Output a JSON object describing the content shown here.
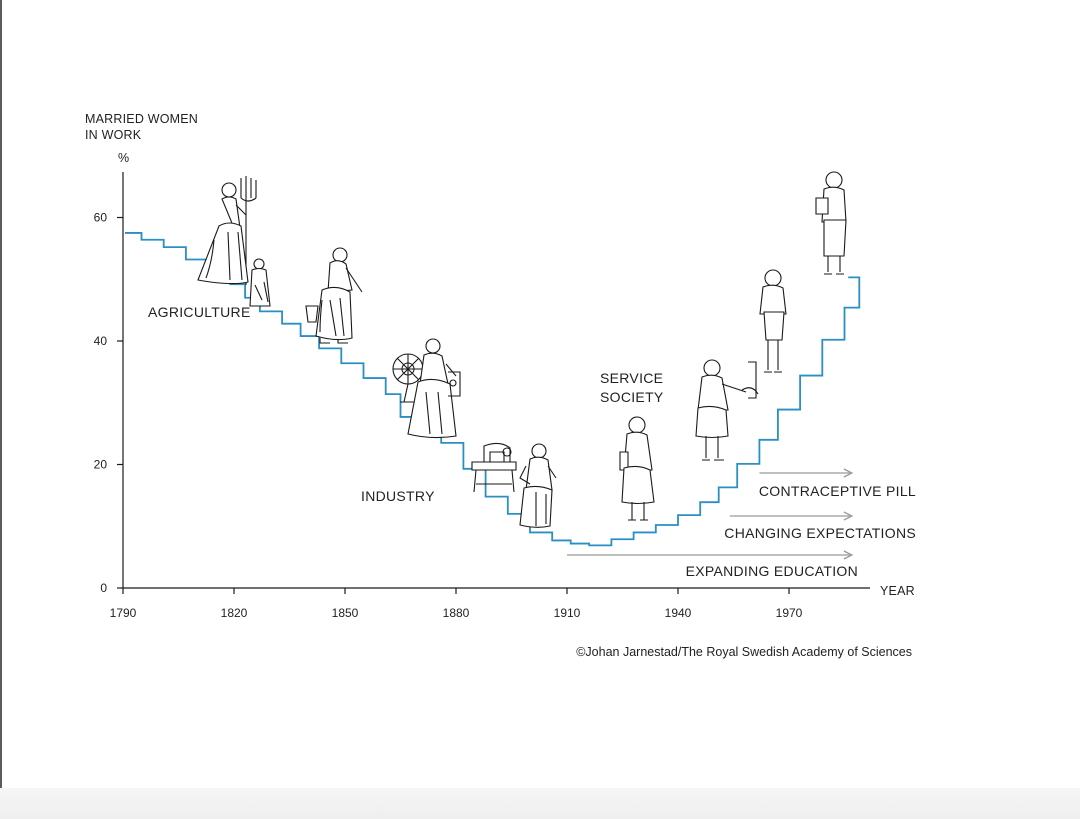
{
  "chart_data": {
    "type": "line",
    "step": true,
    "ylabel_lines": [
      "MARRIED WOMEN",
      "IN WORK"
    ],
    "yunit": "%",
    "xlabel": "YEAR",
    "xlim": [
      1790,
      1990
    ],
    "ylim": [
      0,
      68
    ],
    "xticks": [
      1790,
      1820,
      1850,
      1880,
      1910,
      1940,
      1970
    ],
    "yticks": [
      0,
      20,
      40,
      60
    ],
    "line_color": "#2a8fc4",
    "series": [
      {
        "x": [
          1790,
          1795,
          1801,
          1807,
          1813,
          1819,
          1823,
          1827,
          1833,
          1838,
          1843,
          1849,
          1855,
          1861,
          1865,
          1870,
          1876,
          1882,
          1888,
          1894,
          1900,
          1906,
          1911,
          1916,
          1922,
          1928,
          1934,
          1940,
          1946,
          1951,
          1956,
          1962,
          1967,
          1973,
          1979,
          1985,
          1989
        ],
        "y": [
          57.5,
          56.4,
          55.2,
          53.2,
          51.2,
          49.2,
          47.0,
          44.8,
          42.8,
          40.8,
          38.8,
          36.4,
          34.0,
          31.4,
          27.7,
          25.0,
          23.5,
          19.3,
          14.8,
          12.0,
          9.0,
          7.7,
          7.2,
          6.9,
          7.9,
          9.0,
          10.2,
          11.8,
          13.9,
          16.3,
          20.1,
          24.0,
          28.9,
          34.4,
          40.2,
          45.4,
          50.3
        ]
      }
    ],
    "annotations": [
      {
        "label": "AGRICULTURE"
      },
      {
        "label": "INDUSTRY"
      },
      {
        "label_lines": [
          "SERVICE",
          "SOCIETY"
        ]
      },
      {
        "label": "CONTRACEPTIVE PILL",
        "start_year": 1962,
        "end_year": 1987
      },
      {
        "label": "CHANGING EXPECTATIONS",
        "start_year": 1954,
        "end_year": 1987
      },
      {
        "label": "EXPANDING EDUCATION",
        "start_year": 1910,
        "end_year": 1987
      }
    ],
    "figure_icons": [
      "woman-with-pitchfork-icon",
      "child-icon",
      "woman-with-bucket-icon",
      "woman-at-spinning-wheel-icon",
      "sewing-machine-icon",
      "woman-factory-worker-icon",
      "woman-with-books-icon",
      "woman-at-blackboard-icon",
      "woman-in-suit-icon",
      "woman-professional-icon"
    ],
    "credit": "©Johan Jarnestad/The Royal Swedish Academy of Sciences"
  }
}
